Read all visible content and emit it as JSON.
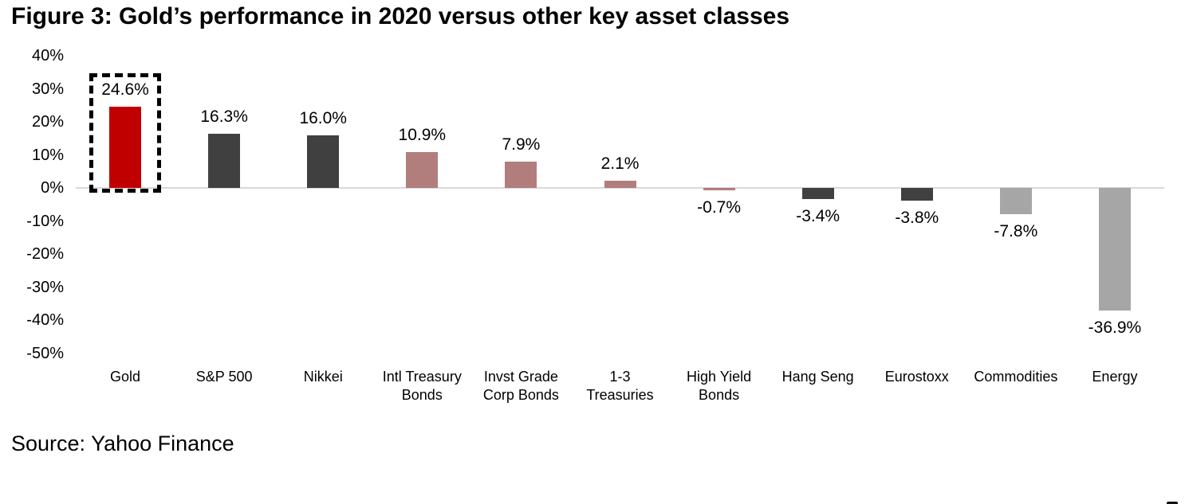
{
  "title": "Figure 3: Gold’s performance in 2020 versus other key asset classes",
  "source": "Source: Yahoo Finance",
  "colors": {
    "gold_bar": "#C00000",
    "equity_dark": "#404040",
    "bond_rose": "#B17D7D",
    "commodity_gray": "#A6A6A6",
    "axis_line": "#D9D9D9",
    "text": "#000000",
    "highlight_border": "#000000"
  },
  "chart_data": {
    "type": "bar",
    "title": "Figure 3: Gold’s performance in 2020 versus other key asset classes",
    "categories": [
      "Gold",
      "S&P 500",
      "Nikkei",
      "Intl Treasury\nBonds",
      "Invst Grade\nCorp Bonds",
      "1-3\nTreasuries",
      "High Yield\nBonds",
      "Hang Seng",
      "Eurostoxx",
      "Commodities",
      "Energy"
    ],
    "values": [
      24.6,
      16.3,
      16.0,
      10.9,
      7.9,
      2.1,
      -0.7,
      -3.4,
      -3.8,
      -7.8,
      -36.9
    ],
    "labels": [
      "24.6%",
      "16.3%",
      "16.0%",
      "10.9%",
      "7.9%",
      "2.1%",
      "-0.7%",
      "-3.4%",
      "-3.8%",
      "-7.8%",
      "-36.9%"
    ],
    "bar_colors": [
      "#C00000",
      "#404040",
      "#404040",
      "#B17D7D",
      "#B17D7D",
      "#B17D7D",
      "#B17D7D",
      "#404040",
      "#404040",
      "#A6A6A6",
      "#A6A6A6"
    ],
    "highlight_index": 0,
    "highlight_style": "black-dashed-box",
    "xlabel": "",
    "ylabel": "",
    "ylim": [
      -50,
      40
    ],
    "yticks": [
      "40%",
      "30%",
      "20%",
      "10%",
      "0%",
      "-10%",
      "-20%",
      "-30%",
      "-40%",
      "-50%"
    ],
    "ytick_values": [
      40,
      30,
      20,
      10,
      0,
      -10,
      -20,
      -30,
      -40,
      -50
    ],
    "grid": false,
    "legend": false
  }
}
